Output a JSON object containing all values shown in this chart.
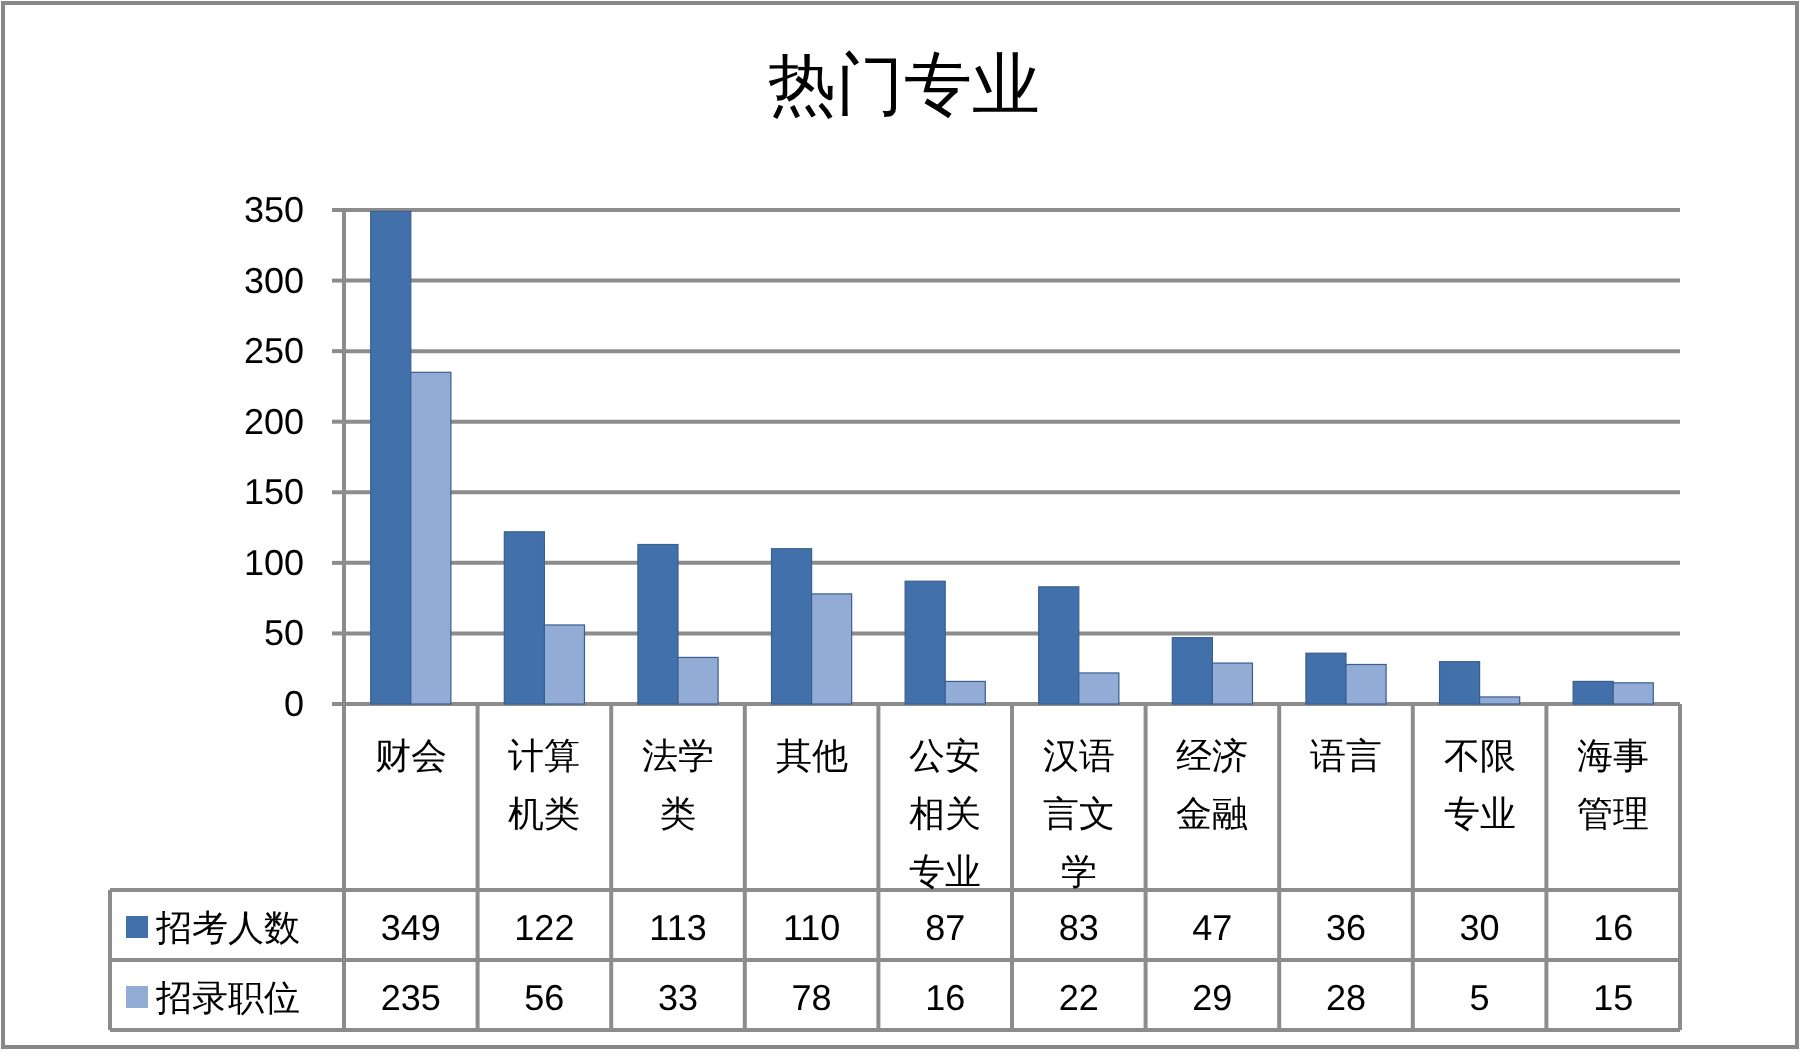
{
  "chart_data": {
    "type": "bar",
    "title": "热门专业",
    "categories": [
      "财会",
      "计算机类",
      "法学类",
      "其他",
      "公安相关专业",
      "汉语言文学",
      "经济金融",
      "语言",
      "不限专业",
      "海事管理"
    ],
    "series": [
      {
        "name": "招考人数",
        "color": "#4270aa",
        "values": [
          349,
          122,
          113,
          110,
          87,
          83,
          47,
          36,
          30,
          16
        ]
      },
      {
        "name": "招录职位",
        "color": "#93acd6",
        "values": [
          235,
          56,
          33,
          78,
          16,
          22,
          29,
          28,
          5,
          15
        ]
      }
    ],
    "ylim": [
      0,
      350
    ],
    "yticks": [
      0,
      50,
      100,
      150,
      200,
      250,
      300,
      350
    ],
    "grid": "y",
    "legend": "bottom left",
    "data_labels": true
  }
}
